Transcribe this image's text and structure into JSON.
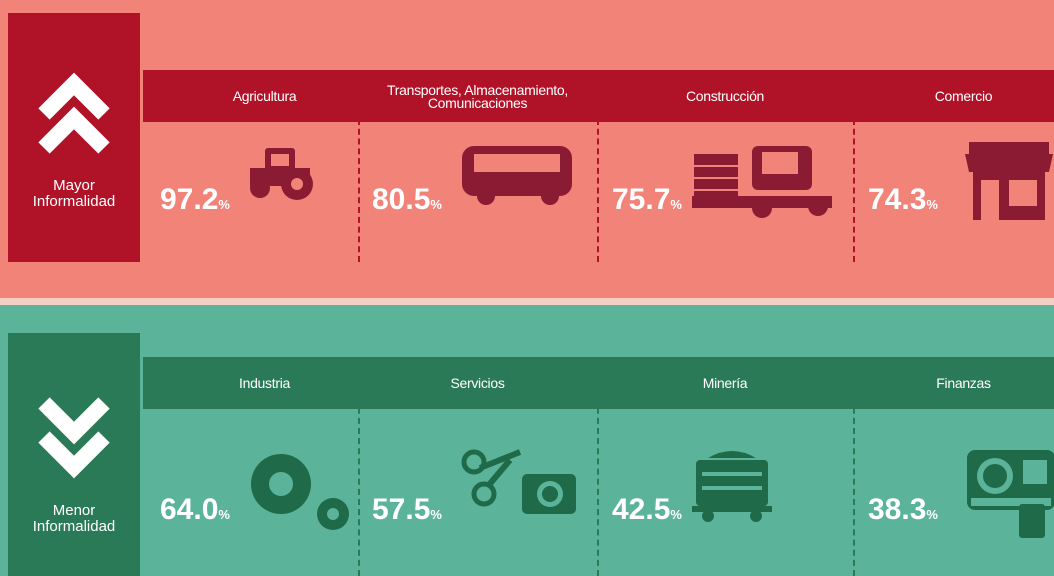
{
  "sections": [
    {
      "title": "Mayor Informalidad",
      "items": [
        {
          "label": "Agricultura",
          "value": "97.2"
        },
        {
          "label": "Transportes, Almacenamiento, Comunicaciones",
          "value": "80.5"
        },
        {
          "label": "Construcción",
          "value": "75.7"
        },
        {
          "label": "Comercio",
          "value": "74.3"
        }
      ]
    },
    {
      "title": "Menor Informalidad",
      "items": [
        {
          "label": "Industria",
          "value": "64.0"
        },
        {
          "label": "Servicios",
          "value": "57.5"
        },
        {
          "label": "Minería",
          "value": "42.5"
        },
        {
          "label": "Finanzas",
          "value": "38.3"
        }
      ]
    }
  ],
  "unit": "%"
}
